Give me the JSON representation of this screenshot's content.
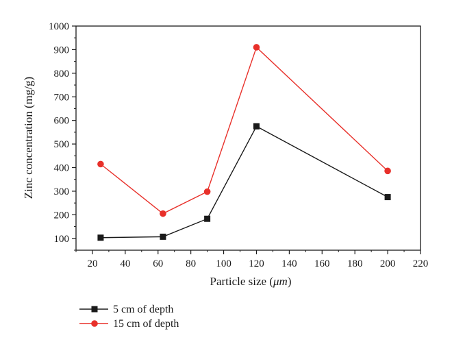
{
  "chart_data": {
    "type": "line",
    "xlabel": "Particle size (",
    "xlabel_unit": "μm",
    "xlabel_end": ")",
    "ylabel": "Zinc concentration (mg/g)",
    "xlim": [
      10,
      220
    ],
    "ylim": [
      50,
      1000
    ],
    "x_ticks": [
      20,
      40,
      60,
      80,
      100,
      120,
      140,
      160,
      180,
      200,
      220
    ],
    "y_ticks": [
      100,
      200,
      300,
      400,
      500,
      600,
      700,
      800,
      900,
      1000
    ],
    "grid": false,
    "legend_position": "bottom-left, below plot",
    "series": [
      {
        "name": "5 cm of depth",
        "color": "#1a1a1a",
        "marker": "square",
        "x": [
          25,
          63,
          90,
          120,
          200
        ],
        "y": [
          103,
          107,
          183,
          575,
          275
        ]
      },
      {
        "name": "15 cm of depth",
        "color": "#e8302a",
        "marker": "circle",
        "x": [
          25,
          63,
          90,
          120,
          200
        ],
        "y": [
          415,
          205,
          298,
          910,
          386
        ]
      }
    ]
  }
}
